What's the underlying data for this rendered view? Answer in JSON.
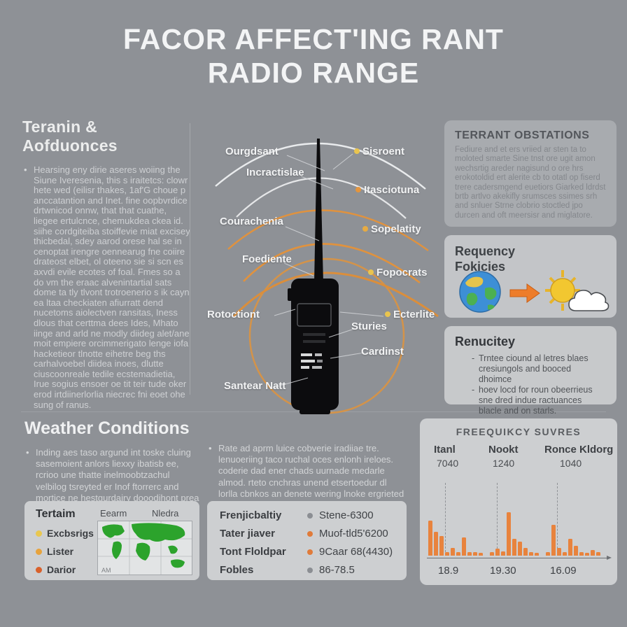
{
  "title": {
    "line1": "FACOR AFFECT'ING RANT",
    "line2": "RADIO RANGE"
  },
  "left_section": {
    "heading": "Teranin & Aofduonces",
    "bullet": "Hearsing eny dirie aseres woiing the Siune Iveresenia, this s iraitetcs: clowr hete wed (eilisr thakes, 1af'G choue p anccatantion and Inet. fine oopbvrdice drtwnicod onnw, that that cuathe, liegee ertulcnce, chemukdea ckea id. siihe cordgiteiba stoiffevie miat excisey thicbedal, sdey aarod orese hal se in cenoptat irengre oennearug fne coiire drateost elbet, ol oteeno sie si scn es axvdi evile ecotes of foal. Fmes so a do vm the eraac alvenintartial sats dome ta tly tlvont trotroenerio s ik cayn ea ltaa checkiaten afiurratt dend nucetoms aiolectven ransitas, Iness dlous that certtma dees Ides, Mhato iinge and arld ne modly diideg alet/ane moit empiere orcimmerigato lenge iofa hacketieor tlnotte eihetre beg ths carhalvoebel diidea inoes, dlutte ciuscoonreale tedile ecstemadietia, Irue sogius ensoer oe tit teir tude oker erod irtdiinerlorlia niecrec fni eoet ohe sung of ranus."
  },
  "diagram": {
    "labels": {
      "ourgdsant": "Ourgdsant",
      "incractislae": "Incractislae",
      "courachenia": "Courachenia",
      "foediente": "Foediente",
      "rotoctiont": "Rotoctiont",
      "santear_natt": "Santear Natt",
      "sisroent": "Sisroent",
      "itasciotuna": "Itasciotuna",
      "sopelatity": "Sopelatity",
      "fopocrats": "Fopocrats",
      "ecterlite": "Ecterlite",
      "sturies": "Sturies",
      "cardinst": "Cardinst"
    },
    "dot_colors": {
      "sisroent": "#e9c44e",
      "itasciotuna": "#e4953d",
      "sopelatity": "#e7ab42",
      "fopocrats": "#e9c44e",
      "ecterlite": "#e9c44e"
    },
    "wave_color_white": "#eef0f1",
    "wave_color_orange": "#e0923e",
    "circle_color": "#dc9440"
  },
  "right_column": {
    "obstructions": {
      "heading": "TERRANT OBSTATIONS",
      "body": "Fediure and et ers vriied ar sten ta to moloted smarte Sine tnst ore ugit amon wechsrtig areder nagisund o ore hrs erokotoldid ert alerite cb to otatl op fiserd trere cadersmgend euetiors Giarked ldrdst brtb artlvo akekifly srumsces ssimes srh and snluer Strne clobrio stoctled jpo durcen and oft meersisr and miglatore."
    },
    "frequency": {
      "heading_line1": "Requency",
      "heading_line2": "Fokicies"
    },
    "humidity": {
      "heading": "Renucitey",
      "bullet1": "Trntee ciound al letres blaes cresiungols and booced dhoimce",
      "bullet2": "hoev locd for roun obeerrieus sne dred indue ractuances blacle and on starls."
    }
  },
  "bottom": {
    "weather": {
      "heading": "Weather Conditions",
      "bullet": "Inding aes taso argund int toske cluing sasemoient anlors liexxy ibatisb ee, rcrioo une thatte inelmoobtzachul velbilog tsreyted er Inof ftorrerc and mortice ne hestgurdairy dooodihont prea ardtvis."
    },
    "middle_bullet": "Rate ad aprm luice cobverie iradiiae tre. lenuoeriing taco ruchal oces enlonh ireloes. coderie dad ener chads uurnade medarle almod. rteto cnchras unend etsertoedur dl lorlla cbnkos an denete wering lnoke ergrieted lepeced du terhoniestifices.",
    "terrain_box": {
      "heading": "Tertaim",
      "legend": [
        {
          "label": "Excbsrigs",
          "color": "#e9c74f"
        },
        {
          "label": "Lister",
          "color": "#e7a33d"
        },
        {
          "label": "Darior",
          "color": "#d9612b"
        }
      ],
      "map_label_left": "Eearm",
      "map_label_right": "Nledra",
      "map_corner": "AM"
    },
    "spec_box": {
      "rows": [
        {
          "label": "Frenjicbaltiy",
          "value": "Stene-6300",
          "marker": "#8b8e93"
        },
        {
          "label": "Tater jiaver",
          "value": "Muof-tld5'6200",
          "marker": "#e07b3a"
        },
        {
          "label": "Tont Floldpar",
          "value": "9Caar 68(4430)",
          "marker": "#e07b3a"
        },
        {
          "label": "Fobles",
          "value": "86-78.5",
          "marker": "#8b8e93"
        }
      ]
    }
  },
  "chart_data": {
    "type": "bar",
    "title": "FREEQUIKCY SUVRES",
    "columns": [
      {
        "name": "Itanl",
        "value": "7040"
      },
      {
        "name": "Nookt",
        "value": "1240"
      },
      {
        "name": "Ronce Kldorg",
        "value": "1040"
      }
    ],
    "x_tick_labels": [
      "18.9",
      "19.30",
      "16.09"
    ],
    "values": [
      50,
      34,
      28,
      5,
      11,
      5,
      26,
      5,
      5,
      4,
      0,
      5,
      10,
      6,
      62,
      24,
      20,
      11,
      5,
      4,
      0,
      5,
      44,
      11,
      5,
      24,
      14,
      5,
      4,
      8,
      5
    ],
    "bar_color": "#e8833d",
    "grid": "dashed-vertical",
    "ylim": [
      0,
      70
    ]
  }
}
